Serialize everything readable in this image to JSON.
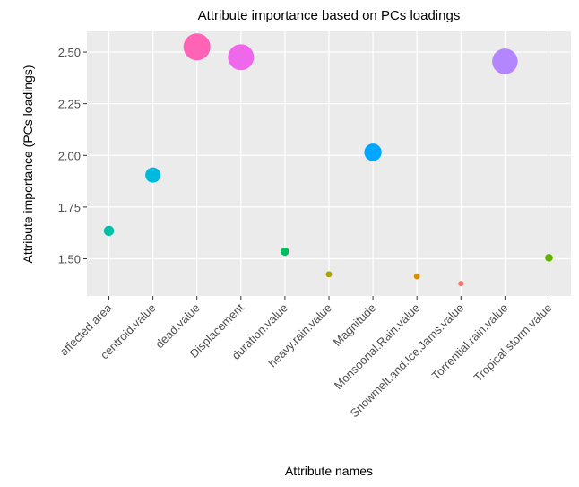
{
  "chart_data": {
    "type": "scatter",
    "title": "Attribute importance based on PCs loadings",
    "x_label": "Attribute names",
    "y_label": "Attribute importance (PCs loadings)",
    "categories": [
      "affected.area",
      "centroid.value",
      "dead.value",
      "Displacement",
      "duration.value",
      "heavy.rain.value",
      "Magnitude",
      "Monsoonal.Rain.value",
      "Snowmelt.and.Ice.Jams.value",
      "Torrential.rain.value",
      "Tropical.storm.value"
    ],
    "values": [
      1.635,
      1.905,
      2.525,
      2.475,
      1.535,
      1.425,
      2.015,
      1.415,
      1.38,
      2.455,
      1.505
    ],
    "colors": [
      "#00C1A7",
      "#00BADE",
      "#FF63B6",
      "#EF67EB",
      "#00BD5C",
      "#AEA200",
      "#00A6FF",
      "#DB8E00",
      "#F8766D",
      "#B385FF",
      "#64B200"
    ],
    "ylim": [
      1.32,
      2.6
    ],
    "yticks": [
      {
        "value": 1.5,
        "label": "1.50"
      },
      {
        "value": 1.75,
        "label": "1.75"
      },
      {
        "value": 2,
        "label": "2.00"
      },
      {
        "value": 2.25,
        "label": "2.25"
      },
      {
        "value": 2.5,
        "label": "2.50"
      }
    ],
    "grid": true
  }
}
